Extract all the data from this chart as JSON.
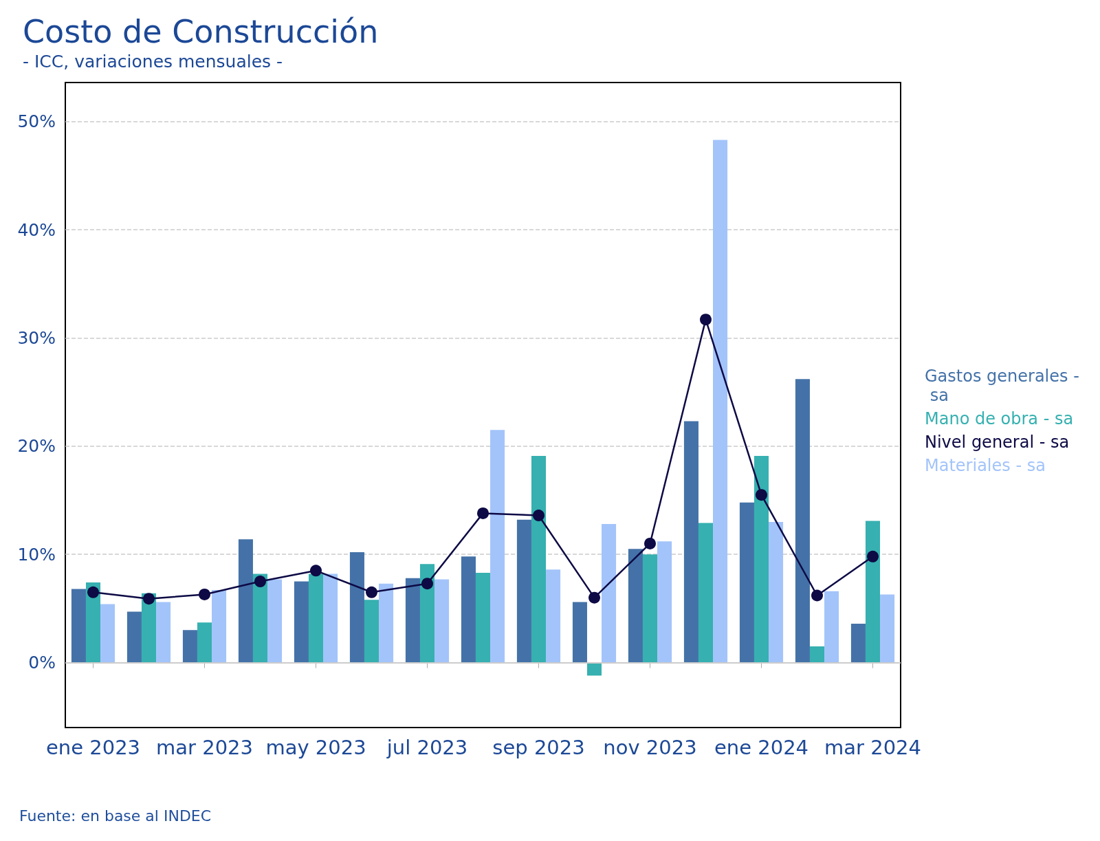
{
  "chart_data": {
    "type": "bar",
    "title": "Costo de Construcción",
    "subtitle": "- ICC, variaciones mensuales -",
    "categories": [
      "ene 2023",
      null,
      "mar 2023",
      null,
      "may 2023",
      null,
      "jul 2023",
      null,
      "sep 2023",
      null,
      "nov 2023",
      null,
      "ene 2024",
      null,
      "mar 2024"
    ],
    "series": [
      {
        "name": "Gastos generales - sa",
        "color": "#4472a8",
        "values": [
          6.8,
          4.7,
          3.0,
          11.4,
          7.5,
          10.2,
          7.8,
          9.8,
          13.2,
          5.6,
          10.5,
          22.3,
          14.8,
          26.2,
          3.6
        ]
      },
      {
        "name": "Mano de obra - sa",
        "color": "#36b0b0",
        "values": [
          7.4,
          6.4,
          3.7,
          8.2,
          8.2,
          5.8,
          9.1,
          8.3,
          19.1,
          -1.2,
          10.0,
          12.9,
          19.1,
          1.5,
          13.1
        ]
      },
      {
        "name": "Nivel general - sa",
        "type": "line",
        "color": "#0d0a45",
        "values": [
          6.5,
          5.9,
          6.3,
          7.5,
          8.5,
          6.5,
          7.3,
          13.8,
          13.6,
          6.0,
          11.0,
          31.7,
          15.5,
          6.2,
          9.8
        ]
      },
      {
        "name": "Materiales - sa",
        "color": "#a3c4fa",
        "values": [
          5.4,
          5.6,
          6.7,
          7.7,
          8.2,
          7.3,
          7.7,
          21.5,
          8.6,
          12.8,
          11.2,
          48.3,
          13.0,
          6.6,
          6.3
        ]
      }
    ],
    "ylim": [
      -6,
      53.6
    ],
    "yticks": [
      {
        "value": 0,
        "label": "0%"
      },
      {
        "value": 10,
        "label": "10%"
      },
      {
        "value": 20,
        "label": "20%"
      },
      {
        "value": 30,
        "label": "30%"
      },
      {
        "value": 40,
        "label": "40%"
      },
      {
        "value": 50,
        "label": "50%"
      }
    ],
    "grid": "y",
    "legend": "right",
    "marker": "circle",
    "annotations": [
      "Fuente: en base al INDEC"
    ]
  }
}
